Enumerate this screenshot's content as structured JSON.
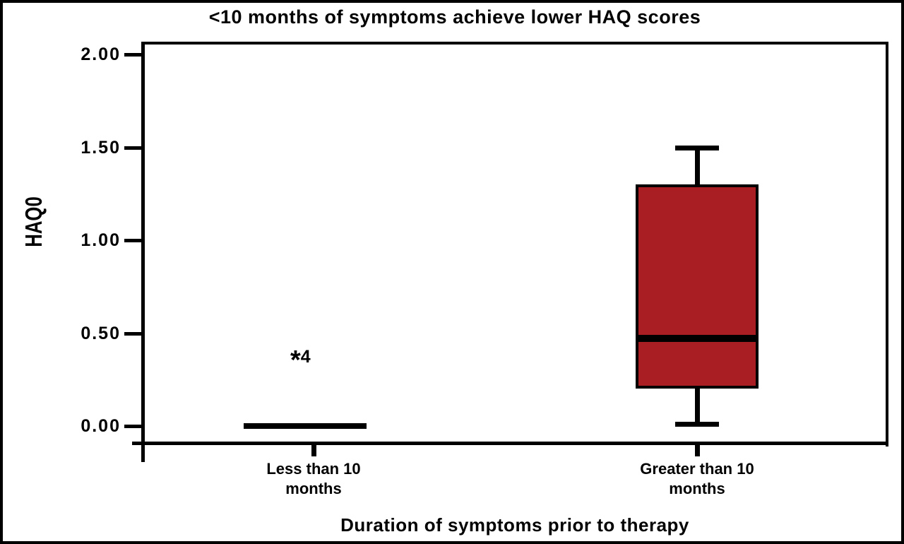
{
  "chart_data": {
    "type": "box",
    "title": "<10 months of symptoms achieve lower HAQ scores",
    "xlabel": "Duration of symptoms prior to therapy",
    "ylabel": "HAQ0",
    "ylim": [
      0.0,
      2.0
    ],
    "grid": false,
    "legend": false,
    "yticks": [
      {
        "label": "2.00",
        "value": 2.0
      },
      {
        "label": "1.50",
        "value": 1.5
      },
      {
        "label": "1.00",
        "value": 1.0
      },
      {
        "label": "0.50",
        "value": 0.5
      },
      {
        "label": "0.00",
        "value": 0.0
      }
    ],
    "categories": [
      "Less than 10 months",
      "Greater than 10 months"
    ],
    "series": [
      {
        "category": "Less than 10 months",
        "whisker_min": 0.0,
        "q1": 0.0,
        "median": 0.0,
        "q3": 0.0,
        "whisker_max": 0.0,
        "outliers": [
          {
            "value": 0.38,
            "case_label": "4",
            "marker": "*"
          }
        ]
      },
      {
        "category": "Greater than 10 months",
        "whisker_min": 0.0,
        "q1": 0.2,
        "median": 0.47,
        "q3": 1.3,
        "whisker_max": 1.5,
        "outliers": []
      }
    ],
    "colors": {
      "box_fill": "#A81E23",
      "line": "#000000",
      "background": "#FFFFFF"
    }
  }
}
